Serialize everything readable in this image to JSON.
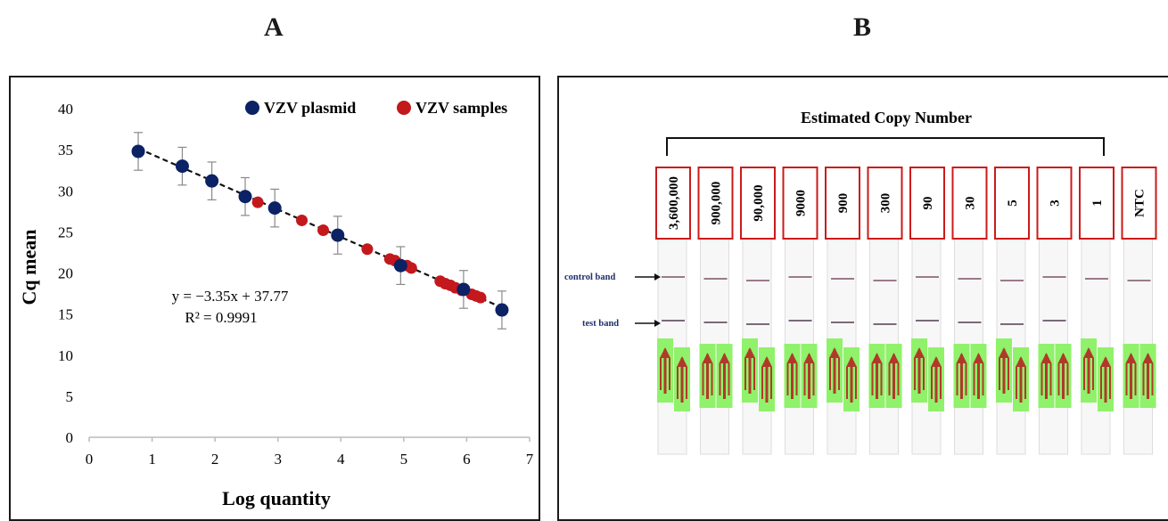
{
  "panel_a": {
    "letter": "A",
    "equation": "y = −3.35x + 37.77",
    "r_squared": "R² = 0.9991"
  },
  "panel_b": {
    "letter": "B",
    "title": "Estimated Copy Number",
    "control_band_label": "control band",
    "test_band_label": "test band",
    "lanes": [
      {
        "label": "3,600,000",
        "test_band": true
      },
      {
        "label": "900,000",
        "test_band": true
      },
      {
        "label": "90,000",
        "test_band": true
      },
      {
        "label": "9000",
        "test_band": true
      },
      {
        "label": "900",
        "test_band": true
      },
      {
        "label": "300",
        "test_band": true
      },
      {
        "label": "90",
        "test_band": true
      },
      {
        "label": "30",
        "test_band": true
      },
      {
        "label": "5",
        "test_band": true
      },
      {
        "label": "3",
        "test_band": true
      },
      {
        "label": "1",
        "test_band": false
      },
      {
        "label": "NTC",
        "test_band": false
      }
    ],
    "colors": {
      "label_box": "#cc1a1a",
      "control_line": "#9a7a8a",
      "test_line": "#7a6a78",
      "pad_green": "#8ff26a",
      "arrow_red": "#b03a2a",
      "label_blue": "#1f2f6b"
    }
  },
  "chart_data": {
    "type": "scatter",
    "xlabel": "Log quantity",
    "ylabel": "Cq mean",
    "xlim": [
      0,
      7
    ],
    "ylim": [
      0,
      40
    ],
    "x_ticks": [
      0,
      1,
      2,
      3,
      4,
      5,
      6,
      7
    ],
    "y_ticks": [
      0,
      5,
      10,
      15,
      20,
      25,
      30,
      35,
      40
    ],
    "legend_position": "top-right",
    "grid": false,
    "trendline": {
      "slope": -3.35,
      "intercept": 37.77,
      "style": "dashed",
      "x_range": [
        0.78,
        6.56
      ]
    },
    "series": [
      {
        "name": "VZV plasmid",
        "color": "#0b2265",
        "points": [
          {
            "x": 0.78,
            "y": 34.8,
            "err": 2.3
          },
          {
            "x": 1.48,
            "y": 33.0,
            "err": 2.3
          },
          {
            "x": 1.95,
            "y": 31.2,
            "err": 2.3
          },
          {
            "x": 2.48,
            "y": 29.3,
            "err": 2.3
          },
          {
            "x": 2.95,
            "y": 27.9,
            "err": 2.3
          },
          {
            "x": 3.95,
            "y": 24.6,
            "err": 2.3
          },
          {
            "x": 4.95,
            "y": 20.9,
            "err": 2.3
          },
          {
            "x": 5.95,
            "y": 18.0,
            "err": 2.3
          },
          {
            "x": 6.56,
            "y": 15.5,
            "err": 2.3
          }
        ]
      },
      {
        "name": "VZV samples",
        "color": "#c3181c",
        "points": [
          {
            "x": 2.68,
            "y": 28.6
          },
          {
            "x": 3.38,
            "y": 26.4
          },
          {
            "x": 3.72,
            "y": 25.2
          },
          {
            "x": 4.42,
            "y": 22.9
          },
          {
            "x": 4.78,
            "y": 21.7
          },
          {
            "x": 4.86,
            "y": 21.5
          },
          {
            "x": 5.05,
            "y": 20.9
          },
          {
            "x": 5.12,
            "y": 20.6
          },
          {
            "x": 5.58,
            "y": 19.0
          },
          {
            "x": 5.66,
            "y": 18.7
          },
          {
            "x": 5.74,
            "y": 18.5
          },
          {
            "x": 5.82,
            "y": 18.2
          },
          {
            "x": 5.92,
            "y": 17.9
          },
          {
            "x": 6.08,
            "y": 17.4
          },
          {
            "x": 6.15,
            "y": 17.2
          },
          {
            "x": 6.22,
            "y": 17.0
          }
        ]
      }
    ]
  }
}
